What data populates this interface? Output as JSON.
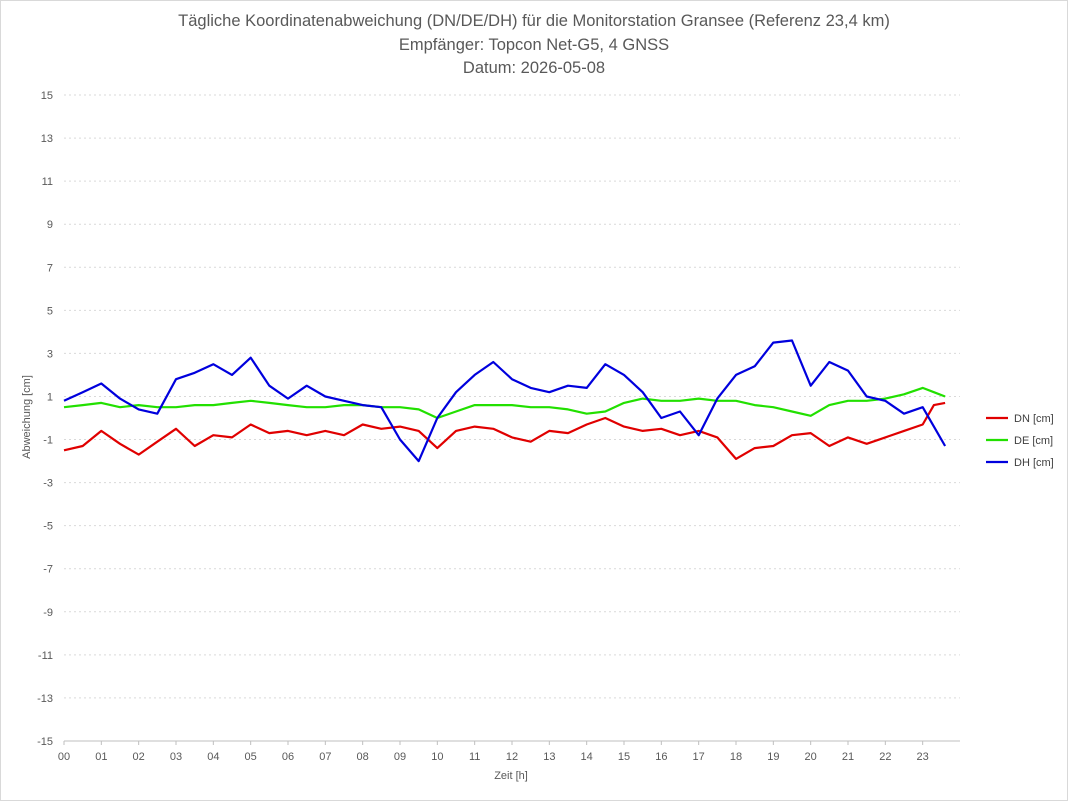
{
  "chart_data": {
    "type": "line",
    "title": "Tägliche Koordinatenabweichung (DN/DE/DH) für die Monitorstation Gransee (Referenz 23,4 km)",
    "subtitle": "Empfänger: Topcon Net-G5, 4 GNSS",
    "date_line": "Datum: 2026-05-08",
    "xlabel": "Zeit [h]",
    "ylabel": "Abweichung [cm]",
    "xlim": [
      0,
      24
    ],
    "ylim": [
      -15,
      15
    ],
    "yticks": [
      15,
      13,
      11,
      9,
      7,
      5,
      3,
      1,
      -1,
      -3,
      -5,
      -7,
      -9,
      -11,
      -13,
      -15
    ],
    "xticks": [
      "00",
      "01",
      "02",
      "03",
      "04",
      "05",
      "06",
      "07",
      "08",
      "09",
      "10",
      "11",
      "12",
      "13",
      "14",
      "15",
      "16",
      "17",
      "18",
      "19",
      "20",
      "21",
      "22",
      "23"
    ],
    "grid": "horizontal dotted",
    "legend_position": "right",
    "series": [
      {
        "name": "DN [cm]",
        "color": "#e00000",
        "x": [
          0,
          0.5,
          1,
          1.5,
          2,
          2.5,
          3,
          3.5,
          4,
          4.5,
          5,
          5.5,
          6,
          6.5,
          7,
          7.5,
          8,
          8.5,
          9,
          9.5,
          10,
          10.5,
          11,
          11.5,
          12,
          12.5,
          13,
          13.5,
          14,
          14.5,
          15,
          15.5,
          16,
          16.5,
          17,
          17.5,
          18,
          18.5,
          19,
          19.5,
          20,
          20.5,
          21,
          21.5,
          22,
          22.5,
          23,
          23.3,
          23.6
        ],
        "values": [
          -1.5,
          -1.3,
          -0.6,
          -1.2,
          -1.7,
          -1.1,
          -0.5,
          -1.3,
          -0.8,
          -0.9,
          -0.3,
          -0.7,
          -0.6,
          -0.8,
          -0.6,
          -0.8,
          -0.3,
          -0.5,
          -0.4,
          -0.6,
          -1.4,
          -0.6,
          -0.4,
          -0.5,
          -0.9,
          -1.1,
          -0.6,
          -0.7,
          -0.3,
          0.0,
          -0.4,
          -0.6,
          -0.5,
          -0.8,
          -0.6,
          -0.9,
          -1.9,
          -1.4,
          -1.3,
          -0.8,
          -0.7,
          -1.3,
          -0.9,
          -1.2,
          -0.9,
          -0.6,
          -0.3,
          0.6,
          0.7
        ]
      },
      {
        "name": "DE [cm]",
        "color": "#22e000",
        "x": [
          0,
          0.5,
          1,
          1.5,
          2,
          2.5,
          3,
          3.5,
          4,
          4.5,
          5,
          5.5,
          6,
          6.5,
          7,
          7.5,
          8,
          8.5,
          9,
          9.5,
          10,
          10.5,
          11,
          11.5,
          12,
          12.5,
          13,
          13.5,
          14,
          14.5,
          15,
          15.5,
          16,
          16.5,
          17,
          17.5,
          18,
          18.5,
          19,
          19.5,
          20,
          20.5,
          21,
          21.5,
          22,
          22.5,
          23,
          23.3,
          23.6
        ],
        "values": [
          0.5,
          0.6,
          0.7,
          0.5,
          0.6,
          0.5,
          0.5,
          0.6,
          0.6,
          0.7,
          0.8,
          0.7,
          0.6,
          0.5,
          0.5,
          0.6,
          0.6,
          0.5,
          0.5,
          0.4,
          0.0,
          0.3,
          0.6,
          0.6,
          0.6,
          0.5,
          0.5,
          0.4,
          0.2,
          0.3,
          0.7,
          0.9,
          0.8,
          0.8,
          0.9,
          0.8,
          0.8,
          0.6,
          0.5,
          0.3,
          0.1,
          0.6,
          0.8,
          0.8,
          0.9,
          1.1,
          1.4,
          1.2,
          1.0
        ]
      },
      {
        "name": "DH [cm]",
        "color": "#0000dd",
        "x": [
          0,
          0.5,
          1,
          1.5,
          2,
          2.5,
          3,
          3.5,
          4,
          4.5,
          5,
          5.5,
          6,
          6.5,
          7,
          7.5,
          8,
          8.5,
          9,
          9.5,
          10,
          10.5,
          11,
          11.5,
          12,
          12.5,
          13,
          13.5,
          14,
          14.5,
          15,
          15.5,
          16,
          16.5,
          17,
          17.5,
          18,
          18.5,
          19,
          19.5,
          20,
          20.5,
          21,
          21.5,
          22,
          22.5,
          23,
          23.3,
          23.6
        ],
        "values": [
          0.8,
          1.2,
          1.6,
          0.9,
          0.4,
          0.2,
          1.8,
          2.1,
          2.5,
          2.0,
          2.8,
          1.5,
          0.9,
          1.5,
          1.0,
          0.8,
          0.6,
          0.5,
          -1.0,
          -2.0,
          0.0,
          1.2,
          2.0,
          2.6,
          1.8,
          1.4,
          1.2,
          1.5,
          1.4,
          2.5,
          2.0,
          1.2,
          0.0,
          0.3,
          -0.8,
          0.9,
          2.0,
          2.4,
          3.5,
          3.6,
          1.5,
          2.6,
          2.2,
          1.0,
          0.8,
          0.2,
          0.5,
          -0.4,
          -1.3
        ]
      }
    ]
  }
}
